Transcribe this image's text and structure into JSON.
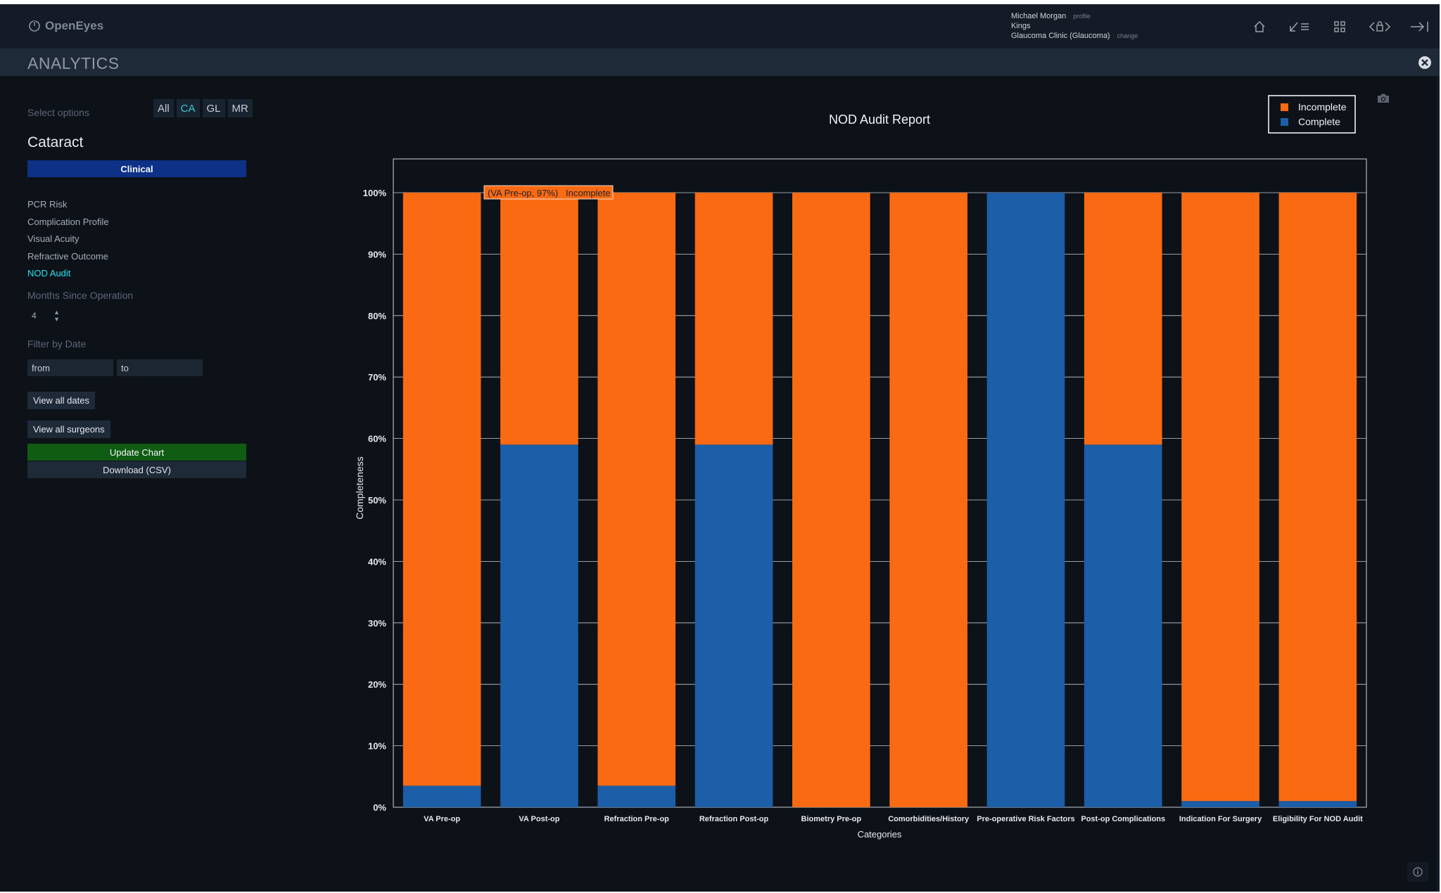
{
  "app": {
    "logo_text": "OpenEyes",
    "user_name": "Michael Morgan",
    "profile_link": "profile",
    "site": "Kings",
    "context": "Glaucoma Clinic (Glaucoma)",
    "change_link": "change",
    "section_title": "ANALYTICS"
  },
  "sidebar": {
    "select_options_label": "Select options",
    "filters": [
      "All",
      "CA",
      "GL",
      "MR"
    ],
    "active_filter": "CA",
    "category_title": "Cataract",
    "clinical_button": "Clinical",
    "nav_items": [
      "PCR Risk",
      "Complication Profile",
      "Visual Acuity",
      "Refractive Outcome",
      "NOD Audit"
    ],
    "active_nav": "NOD Audit",
    "months_label": "Months Since Operation",
    "months_value": "4",
    "filter_date_label": "Filter by Date",
    "from_placeholder": "from",
    "to_placeholder": "to",
    "view_all_dates": "View all dates",
    "view_all_surgeons": "View all surgeons",
    "update_chart": "Update Chart",
    "download_csv": "Download (CSV)"
  },
  "colors": {
    "incomplete": "#fa6a12",
    "complete": "#1c5ea8",
    "active_accent": "#2ee0f0"
  },
  "chart_data": {
    "type": "bar",
    "stacked": true,
    "title": "NOD Audit Report",
    "xlabel": "Categories",
    "ylabel": "Completeness",
    "ylim": [
      0,
      100
    ],
    "yticks": [
      "0%",
      "10%",
      "20%",
      "30%",
      "40%",
      "50%",
      "60%",
      "70%",
      "80%",
      "90%",
      "100%"
    ],
    "categories": [
      "VA Pre-op",
      "VA Post-op",
      "Refraction Pre-op",
      "Refraction Post-op",
      "Biometry Pre-op",
      "Comorbidities/History",
      "Pre-operative Risk Factors",
      "Post-op Complications",
      "Indication For Surgery",
      "Eligibility For NOD Audit"
    ],
    "series": [
      {
        "name": "Complete",
        "values": [
          3.5,
          59,
          3.5,
          59,
          0,
          0,
          100,
          59,
          1,
          1
        ]
      },
      {
        "name": "Incomplete",
        "values": [
          96.5,
          41,
          96.5,
          41,
          100,
          100,
          0,
          41,
          99,
          99
        ]
      }
    ],
    "legend": [
      "Incomplete",
      "Complete"
    ],
    "legend_position": "top-right",
    "hover_label": {
      "text": "(VA Pre-op, 97%)",
      "series": "Incomplete"
    }
  }
}
